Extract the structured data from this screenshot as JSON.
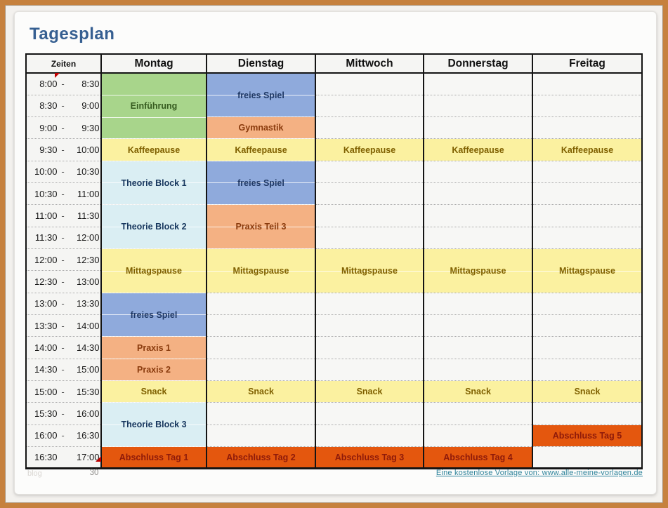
{
  "page": {
    "title": "Tagesplan",
    "footer": {
      "watermark": "blog",
      "page_number": "30",
      "source_link": "Eine kostenlose Vorlage von:  www.alle-meine-vorlagen.de"
    }
  },
  "colors": {
    "frame": "#c6813e",
    "title": "#365f91",
    "link": "#31859c",
    "green_bg": "#a8d58b",
    "green_text": "#375c20",
    "blue_bg": "#8faadc",
    "blue_text": "#1f3864",
    "orange_bg": "#f4b183",
    "orange_text": "#8a3b0d",
    "yellow_bg": "#fbf1a0",
    "yellow_text": "#7f6000",
    "cyan_bg": "#daeef3",
    "cyan_text": "#17375e",
    "red_bg": "#e4570e",
    "red_text": "#8e1a0a"
  },
  "table": {
    "headers": [
      "Zeiten",
      "Montag",
      "Dienstag",
      "Mittwoch",
      "Donnerstag",
      "Freitag"
    ],
    "time_rows": [
      {
        "start": "8:00",
        "sep": "-",
        "end": "8:30"
      },
      {
        "start": "8:30",
        "sep": "-",
        "end": "9:00"
      },
      {
        "start": "9:00",
        "sep": "-",
        "end": "9:30"
      },
      {
        "start": "9:30",
        "sep": "-",
        "end": "10:00"
      },
      {
        "start": "10:00",
        "sep": "-",
        "end": "10:30"
      },
      {
        "start": "10:30",
        "sep": "-",
        "end": "11:00"
      },
      {
        "start": "11:00",
        "sep": "-",
        "end": "11:30"
      },
      {
        "start": "11:30",
        "sep": "-",
        "end": "12:00"
      },
      {
        "start": "12:00",
        "sep": "-",
        "end": "12:30"
      },
      {
        "start": "12:30",
        "sep": "-",
        "end": "13:00"
      },
      {
        "start": "13:00",
        "sep": "-",
        "end": "13:30"
      },
      {
        "start": "13:30",
        "sep": "-",
        "end": "14:00"
      },
      {
        "start": "14:00",
        "sep": "-",
        "end": "14:30"
      },
      {
        "start": "14:30",
        "sep": "-",
        "end": "15:00"
      },
      {
        "start": "15:00",
        "sep": "-",
        "end": "15:30"
      },
      {
        "start": "15:30",
        "sep": "-",
        "end": "16:00"
      },
      {
        "start": "16:00",
        "sep": "-",
        "end": "16:30"
      },
      {
        "start": "16:30",
        "sep": "",
        "end": "17:00"
      }
    ],
    "days": [
      {
        "name": "Montag",
        "blocks": [
          {
            "row": 0,
            "span": 3,
            "color": "green",
            "label": "Einführung"
          },
          {
            "row": 3,
            "span": 1,
            "color": "yellow",
            "label": "Kaffeepause"
          },
          {
            "row": 4,
            "span": 2,
            "color": "cyan",
            "label": "Theorie Block 1"
          },
          {
            "row": 6,
            "span": 2,
            "color": "cyan",
            "label": "Theorie Block 2"
          },
          {
            "row": 8,
            "span": 2,
            "color": "yellow",
            "label": "Mittagspause"
          },
          {
            "row": 10,
            "span": 2,
            "color": "blue",
            "label": "freies Spiel"
          },
          {
            "row": 12,
            "span": 1,
            "color": "orange",
            "label": "Praxis 1"
          },
          {
            "row": 13,
            "span": 1,
            "color": "orange",
            "label": "Praxis 2"
          },
          {
            "row": 14,
            "span": 1,
            "color": "yellow",
            "label": "Snack"
          },
          {
            "row": 15,
            "span": 2,
            "color": "cyan",
            "label": "Theorie Block 3"
          },
          {
            "row": 17,
            "span": 1,
            "color": "red",
            "label": "Abschluss Tag 1"
          }
        ]
      },
      {
        "name": "Dienstag",
        "blocks": [
          {
            "row": 0,
            "span": 2,
            "color": "blue",
            "label": "freies Spiel"
          },
          {
            "row": 2,
            "span": 1,
            "color": "orange",
            "label": "Gymnastik"
          },
          {
            "row": 3,
            "span": 1,
            "color": "yellow",
            "label": "Kaffeepause"
          },
          {
            "row": 4,
            "span": 2,
            "color": "blue",
            "label": "freies Spiel"
          },
          {
            "row": 6,
            "span": 2,
            "color": "orange",
            "label": "Praxis Teil 3"
          },
          {
            "row": 8,
            "span": 2,
            "color": "yellow",
            "label": "Mittagspause"
          },
          {
            "row": 14,
            "span": 1,
            "color": "yellow",
            "label": "Snack"
          },
          {
            "row": 17,
            "span": 1,
            "color": "red",
            "label": "Abschluss Tag 2"
          }
        ]
      },
      {
        "name": "Mittwoch",
        "blocks": [
          {
            "row": 3,
            "span": 1,
            "color": "yellow",
            "label": "Kaffeepause"
          },
          {
            "row": 8,
            "span": 2,
            "color": "yellow",
            "label": "Mittagspause"
          },
          {
            "row": 14,
            "span": 1,
            "color": "yellow",
            "label": "Snack"
          },
          {
            "row": 17,
            "span": 1,
            "color": "red",
            "label": "Abschluss Tag 3"
          }
        ]
      },
      {
        "name": "Donnerstag",
        "blocks": [
          {
            "row": 3,
            "span": 1,
            "color": "yellow",
            "label": "Kaffeepause"
          },
          {
            "row": 8,
            "span": 2,
            "color": "yellow",
            "label": "Mittagspause"
          },
          {
            "row": 14,
            "span": 1,
            "color": "yellow",
            "label": "Snack"
          },
          {
            "row": 17,
            "span": 1,
            "color": "red",
            "label": "Abschluss Tag 4"
          }
        ]
      },
      {
        "name": "Freitag",
        "blocks": [
          {
            "row": 3,
            "span": 1,
            "color": "yellow",
            "label": "Kaffeepause"
          },
          {
            "row": 8,
            "span": 2,
            "color": "yellow",
            "label": "Mittagspause"
          },
          {
            "row": 14,
            "span": 1,
            "color": "yellow",
            "label": "Snack"
          },
          {
            "row": 16,
            "span": 1,
            "color": "red",
            "label": "Abschluss Tag 5"
          }
        ]
      }
    ]
  }
}
